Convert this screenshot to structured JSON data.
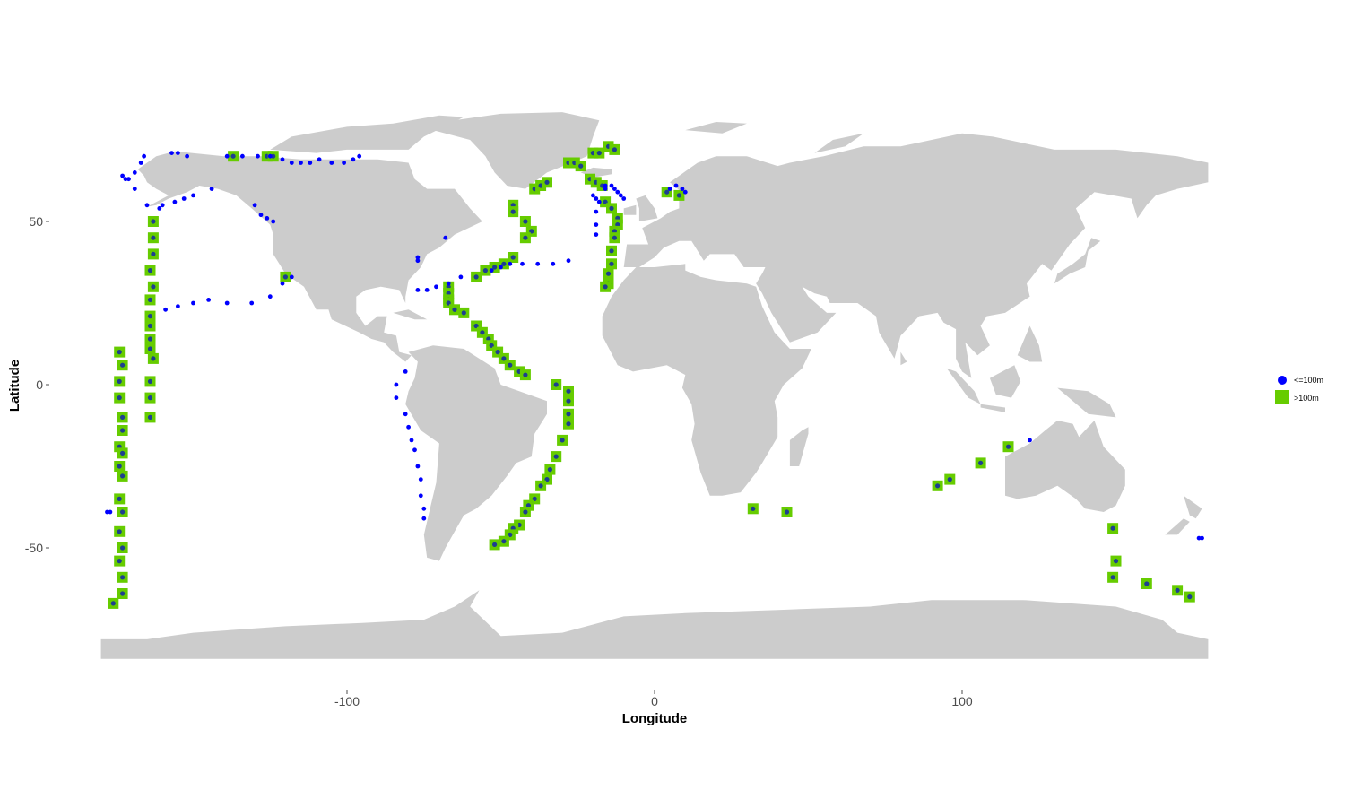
{
  "chart_data": {
    "type": "scatter",
    "title": "",
    "xlabel": "Longitude",
    "ylabel": "Latitude",
    "xlim": [
      -180,
      180
    ],
    "ylim": [
      -85,
      84
    ],
    "x_ticks": [
      -100,
      0,
      100
    ],
    "y_ticks": [
      50,
      0,
      -50
    ],
    "x_tick_labels": [
      "-100",
      "0",
      "100"
    ],
    "y_tick_labels": [
      "50",
      "0",
      "-50"
    ],
    "grid": false,
    "background_map": "world land masses",
    "legend_position": "right",
    "land_color": "#cccccc",
    "series": [
      {
        "name": "<=100m",
        "marker": "circle",
        "color": "#0000ff",
        "points": [
          [
            -173,
            64
          ],
          [
            -172,
            63
          ],
          [
            -171,
            63
          ],
          [
            -169,
            60
          ],
          [
            -169,
            65
          ],
          [
            -167,
            68
          ],
          [
            -166,
            70
          ],
          [
            -165,
            55
          ],
          [
            -161,
            54
          ],
          [
            -160,
            55
          ],
          [
            -157,
            71
          ],
          [
            -155,
            71
          ],
          [
            -152,
            70
          ],
          [
            -156,
            56
          ],
          [
            -153,
            57
          ],
          [
            -150,
            58
          ],
          [
            -144,
            60
          ],
          [
            -139,
            70
          ],
          [
            -134,
            70
          ],
          [
            -129,
            70
          ],
          [
            -125,
            70
          ],
          [
            -121,
            69
          ],
          [
            -118,
            68
          ],
          [
            -115,
            68
          ],
          [
            -112,
            68
          ],
          [
            -109,
            69
          ],
          [
            -105,
            68
          ],
          [
            -101,
            68
          ],
          [
            -98,
            69
          ],
          [
            -96,
            70
          ],
          [
            -130,
            55
          ],
          [
            -128,
            52
          ],
          [
            -126,
            51
          ],
          [
            -124,
            50
          ],
          [
            -77,
            39
          ],
          [
            -77,
            38
          ],
          [
            -68,
            45
          ],
          [
            -159,
            23
          ],
          [
            -155,
            24
          ],
          [
            -150,
            25
          ],
          [
            -145,
            26
          ],
          [
            -139,
            25
          ],
          [
            -131,
            25
          ],
          [
            -125,
            27
          ],
          [
            -121,
            31
          ],
          [
            -118,
            33
          ],
          [
            -77,
            29
          ],
          [
            -74,
            29
          ],
          [
            -71,
            30
          ],
          [
            -67,
            31
          ],
          [
            -63,
            33
          ],
          [
            -53,
            35
          ],
          [
            -50,
            36
          ],
          [
            -47,
            37
          ],
          [
            -43,
            37
          ],
          [
            -38,
            37
          ],
          [
            -33,
            37
          ],
          [
            -28,
            38
          ],
          [
            -81,
            4
          ],
          [
            -84,
            0
          ],
          [
            -84,
            -4
          ],
          [
            -81,
            -9
          ],
          [
            -80,
            -13
          ],
          [
            -79,
            -17
          ],
          [
            -78,
            -20
          ],
          [
            -77,
            -25
          ],
          [
            -76,
            -29
          ],
          [
            -76,
            -34
          ],
          [
            -75,
            -38
          ],
          [
            -75,
            -41
          ],
          [
            -20,
            58
          ],
          [
            -19,
            57
          ],
          [
            -18,
            56
          ],
          [
            -19,
            53
          ],
          [
            -19,
            49
          ],
          [
            -19,
            46
          ],
          [
            -16,
            61
          ],
          [
            -16,
            60
          ],
          [
            -14,
            61
          ],
          [
            -13,
            60
          ],
          [
            -12,
            59
          ],
          [
            -11,
            58
          ],
          [
            -10,
            57
          ],
          [
            5,
            60
          ],
          [
            7,
            61
          ],
          [
            9,
            60
          ],
          [
            10,
            59
          ],
          [
            122,
            -17
          ],
          [
            -178,
            -39
          ],
          [
            -177,
            -39
          ],
          [
            177,
            -47
          ],
          [
            178,
            -47
          ]
        ]
      },
      {
        "name": ">100m",
        "marker": "square",
        "color": "#66cc00",
        "points": [
          [
            -137,
            70
          ],
          [
            -126,
            70
          ],
          [
            -124,
            70
          ],
          [
            -163,
            50
          ],
          [
            -163,
            45
          ],
          [
            -163,
            40
          ],
          [
            -164,
            35
          ],
          [
            -163,
            30
          ],
          [
            -164,
            26
          ],
          [
            -164,
            21
          ],
          [
            -164,
            18
          ],
          [
            -164,
            14
          ],
          [
            -164,
            11
          ],
          [
            -163,
            8
          ],
          [
            -164,
            1
          ],
          [
            -164,
            -4
          ],
          [
            -164,
            -10
          ],
          [
            -174,
            10
          ],
          [
            -173,
            6
          ],
          [
            -174,
            1
          ],
          [
            -174,
            -4
          ],
          [
            -173,
            -10
          ],
          [
            -173,
            -14
          ],
          [
            -174,
            -19
          ],
          [
            -173,
            -21
          ],
          [
            -174,
            -25
          ],
          [
            -173,
            -28
          ],
          [
            -174,
            -35
          ],
          [
            -173,
            -39
          ],
          [
            -174,
            -45
          ],
          [
            -173,
            -50
          ],
          [
            -174,
            -54
          ],
          [
            -173,
            -59
          ],
          [
            -173,
            -64
          ],
          [
            -176,
            -67
          ],
          [
            -120,
            33
          ],
          [
            -67,
            30
          ],
          [
            -67,
            28
          ],
          [
            -67,
            26
          ],
          [
            -67,
            25
          ],
          [
            -65,
            23
          ],
          [
            -62,
            22
          ],
          [
            -58,
            33
          ],
          [
            -55,
            35
          ],
          [
            -52,
            36
          ],
          [
            -49,
            37
          ],
          [
            -46,
            39
          ],
          [
            -58,
            18
          ],
          [
            -56,
            16
          ],
          [
            -54,
            14
          ],
          [
            -53,
            12
          ],
          [
            -51,
            10
          ],
          [
            -49,
            8
          ],
          [
            -47,
            6
          ],
          [
            -44,
            4
          ],
          [
            -42,
            3
          ],
          [
            -32,
            0
          ],
          [
            -28,
            -2
          ],
          [
            -28,
            -5
          ],
          [
            -28,
            -9
          ],
          [
            -28,
            -12
          ],
          [
            -30,
            -17
          ],
          [
            -32,
            -22
          ],
          [
            -34,
            -26
          ],
          [
            -35,
            -29
          ],
          [
            -37,
            -31
          ],
          [
            -39,
            -35
          ],
          [
            -41,
            -37
          ],
          [
            -42,
            -39
          ],
          [
            -44,
            -43
          ],
          [
            -46,
            -44
          ],
          [
            -47,
            -46
          ],
          [
            -49,
            -48
          ],
          [
            -52,
            -49
          ],
          [
            -46,
            55
          ],
          [
            -46,
            53
          ],
          [
            -42,
            50
          ],
          [
            -40,
            47
          ],
          [
            -42,
            45
          ],
          [
            -39,
            60
          ],
          [
            -37,
            61
          ],
          [
            -35,
            62
          ],
          [
            -28,
            68
          ],
          [
            -26,
            68
          ],
          [
            -24,
            67
          ],
          [
            -20,
            71
          ],
          [
            -18,
            71
          ],
          [
            -15,
            73
          ],
          [
            -13,
            72
          ],
          [
            -21,
            63
          ],
          [
            -19,
            62
          ],
          [
            -17,
            61
          ],
          [
            -16,
            56
          ],
          [
            -14,
            54
          ],
          [
            -12,
            51
          ],
          [
            -12,
            49
          ],
          [
            -13,
            47
          ],
          [
            -13,
            45
          ],
          [
            -14,
            41
          ],
          [
            -14,
            37
          ],
          [
            -15,
            34
          ],
          [
            -15,
            31
          ],
          [
            -16,
            30
          ],
          [
            4,
            59
          ],
          [
            8,
            58
          ],
          [
            115,
            -19
          ],
          [
            106,
            -24
          ],
          [
            96,
            -29
          ],
          [
            92,
            -31
          ],
          [
            32,
            -38
          ],
          [
            43,
            -39
          ],
          [
            149,
            -44
          ],
          [
            150,
            -54
          ],
          [
            149,
            -59
          ],
          [
            160,
            -61
          ],
          [
            170,
            -63
          ],
          [
            174,
            -65
          ]
        ]
      }
    ]
  }
}
